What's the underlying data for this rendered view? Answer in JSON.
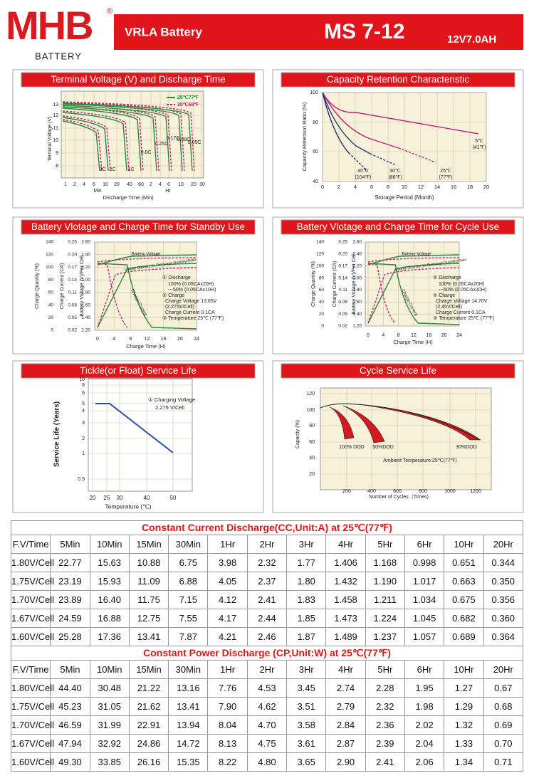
{
  "header": {
    "logo": "MHB",
    "logo_sub": "BATTERY",
    "registered": "®",
    "product_type": "VRLA Battery",
    "model": "MS 7-12",
    "rating": "12V7.0AH"
  },
  "panels": [
    {
      "title": "Terminal Voltage (V) and Discharge Time",
      "y_axes": [
        {
          "label": "Terminal Voltage (V)",
          "ticks": [
            "13",
            "12",
            "11",
            "10",
            "9",
            "8"
          ]
        }
      ],
      "x_axis": {
        "label": "Discharge Time (Min)",
        "ticks": [
          "1",
          "2",
          "4",
          "6",
          "10",
          "20",
          "40",
          "60",
          "2",
          "4",
          "6",
          "10",
          "20",
          "30"
        ],
        "units": [
          "Min",
          "Hr"
        ]
      },
      "legend": [
        "25℃77℉",
        "20℃68℉"
      ],
      "annotations": [
        "3C",
        "2C",
        "1C",
        "0.6C",
        "0.25C",
        "0.17C",
        "0.09C",
        "0.05C"
      ]
    },
    {
      "title": "Capacity Retention Characteristic",
      "y_axes": [
        {
          "label": "Capacity Retention Ratio (%)",
          "ticks": [
            "100",
            "80",
            "60",
            "40"
          ]
        }
      ],
      "x_axis": {
        "label": "Storage Period (Month)",
        "ticks": [
          "0",
          "2",
          "4",
          "6",
          "8",
          "10",
          "12",
          "14",
          "16",
          "18",
          "20"
        ]
      },
      "annotations": [
        "5℃",
        "(41℉)",
        "25℃",
        "(77℉)",
        "30℃",
        "(86℉)",
        "40℃",
        "(104℉)"
      ]
    },
    {
      "title": "Battery Vlotage and Charge Time for Standby Use",
      "y_axes": [
        {
          "label": "Charge Quantity (%)",
          "ticks": [
            "140",
            "120",
            "100",
            "80",
            "60",
            "40",
            "20",
            "0"
          ]
        },
        {
          "label": "Charge Current (CA)",
          "ticks": [
            "0.25",
            "0.20",
            "0.17",
            "0.14",
            "0.11",
            "0.08",
            "0.05",
            "0.02"
          ]
        },
        {
          "label": "Battery Voltage (V)/Per Cell",
          "ticks": [
            "2.60",
            "2.40",
            "2.20",
            "2.00",
            "1.80",
            "1.60",
            "1.40",
            "1.20"
          ]
        }
      ],
      "x_axis": {
        "label": "Charge Time (H)",
        "ticks": [
          "0",
          "4",
          "8",
          "12",
          "16",
          "20",
          "24"
        ]
      },
      "annotations": [
        "Battery Voltage",
        "Charge Quantity (to-Discharge Quantity)Ratio",
        "Charge Current",
        "① Discharge",
        "100% (0.05CAx20H)",
        "---50% (0.05CAx10H)",
        "② Charge",
        "Charge Voltage 13.65V",
        "(2.275V/Cell)",
        "Charge Current 0.1CA",
        "③ Temperature 25℃ (77℉)"
      ]
    },
    {
      "title": "Battery Vlotage and Charge Time for Cycle Use",
      "y_axes": [
        {
          "label": "Charge Quantity (%)",
          "ticks": [
            "140",
            "120",
            "100",
            "80",
            "60",
            "40",
            "20",
            "0"
          ]
        },
        {
          "label": "Charge Current (CA)",
          "ticks": [
            "0.25",
            "0.20",
            "0.17",
            "0.14",
            "0.11",
            "0.08",
            "0.05",
            "0.02"
          ]
        },
        {
          "label": "Battery Voltage (V)/Per Cell",
          "ticks": [
            "2.60",
            "2.40",
            "2.20",
            "2.00",
            "1.80",
            "1.60",
            "1.40",
            "1.20"
          ]
        }
      ],
      "x_axis": {
        "label": "Charge Time (H)",
        "ticks": [
          "0",
          "4",
          "8",
          "12",
          "16",
          "20",
          "24"
        ]
      },
      "annotations": [
        "Battery Voltage",
        "Charge Quantity (to-Discharge Quantity)Ratio",
        "Charge Current",
        "① Discharge",
        "100% (0.05CAx20H)",
        "---50% (0.05CAx10H)",
        "② Charge",
        "Charge Voltage 14.70V",
        "(2.45V/Cell)",
        "Charge Current 0.1CA",
        "③ Temperature 25℃ (77℉)"
      ]
    },
    {
      "title": "Tickle(or Float) Service Life",
      "y_axes": [
        {
          "label": "Service Life (Years)",
          "ticks": [
            "10",
            "8",
            "6",
            "5",
            "4",
            "3",
            "2",
            "1",
            "0.5"
          ]
        }
      ],
      "x_axis": {
        "label": "Temperature (℃)",
        "ticks": [
          "20",
          "25",
          "30",
          "40",
          "50"
        ]
      },
      "annotations": [
        "① Charging Voltage",
        "2.275 V/Cell"
      ]
    },
    {
      "title": "Cycle Service Life",
      "y_axes": [
        {
          "label": "Capacity (%)",
          "ticks": [
            "120",
            "100",
            "80",
            "60",
            "40",
            "20"
          ]
        }
      ],
      "x_axis": {
        "label": "Number of Cycles（Times)",
        "ticks": [
          "200",
          "400",
          "600",
          "800",
          "1000",
          "1200"
        ]
      },
      "annotations": [
        "100% DOD",
        "50%DOD",
        "30%DOD",
        "Ambient Temperature:25℃(77℉)"
      ]
    }
  ],
  "tables": [
    {
      "title": "Constant Current Discharge(CC,Unit:A)   at 25℃(77℉)",
      "header": [
        "F.V/Time",
        "5Min",
        "10Min",
        "15Min",
        "30Min",
        "1Hr",
        "2Hr",
        "3Hr",
        "4Hr",
        "5Hr",
        "6Hr",
        "10Hr",
        "20Hr"
      ],
      "rows": [
        [
          "1.80V/Cell",
          "22.77",
          "15.63",
          "10.88",
          "6.75",
          "3.98",
          "2.32",
          "1.77",
          "1.406",
          "1.168",
          "0.998",
          "0.651",
          "0.344"
        ],
        [
          "1.75V/Cell",
          "23.19",
          "15.93",
          "11.09",
          "6.88",
          "4.05",
          "2.37",
          "1.80",
          "1.432",
          "1.190",
          "1.017",
          "0.663",
          "0.350"
        ],
        [
          "1.70V/Cell",
          "23.89",
          "16.40",
          "11.75",
          "7.15",
          "4.12",
          "2.41",
          "1.83",
          "1.458",
          "1.211",
          "1.034",
          "0.675",
          "0.356"
        ],
        [
          "1.67V/Cell",
          "24.59",
          "16.88",
          "12.75",
          "7.55",
          "4.17",
          "2.44",
          "1.85",
          "1.473",
          "1.224",
          "1.045",
          "0.682",
          "0.360"
        ],
        [
          "1.60V/Cell",
          "25.28",
          "17.36",
          "13.41",
          "7.87",
          "4.21",
          "2.46",
          "1.87",
          "1.489",
          "1.237",
          "1.057",
          "0.689",
          "0.364"
        ]
      ]
    },
    {
      "title": "Constant Power Discharge (CP,Unit:W) at 25℃(77℉)",
      "header": [
        "F.V/Time",
        "5Min",
        "10Min",
        "15Min",
        "30Min",
        "1Hr",
        "2Hr",
        "3Hr",
        "4Hr",
        "5Hr",
        "6Hr",
        "10Hr",
        "20Hr"
      ],
      "rows": [
        [
          "1.80V/Cell",
          "44.40",
          "30.48",
          "21.22",
          "13.16",
          "7.76",
          "4.53",
          "3.45",
          "2.74",
          "2.28",
          "1.95",
          "1.27",
          "0.67"
        ],
        [
          "1.75V/Cell",
          "45.23",
          "31.05",
          "21.62",
          "13.41",
          "7.90",
          "4.62",
          "3.51",
          "2.79",
          "2.32",
          "1.98",
          "1.29",
          "0.68"
        ],
        [
          "1.70V/Cell",
          "46.59",
          "31.99",
          "22.91",
          "13.94",
          "8.04",
          "4.70",
          "3.58",
          "2.84",
          "2.36",
          "2.02",
          "1.32",
          "0.69"
        ],
        [
          "1.67V/Cell",
          "47.94",
          "32.92",
          "24.86",
          "14.72",
          "8.13",
          "4.75",
          "3.61",
          "2.87",
          "2.39",
          "2.04",
          "1.33",
          "0.70"
        ],
        [
          "1.60V/Cell",
          "49.30",
          "33.85",
          "26.16",
          "15.35",
          "8.22",
          "4.80",
          "3.65",
          "2.90",
          "2.41",
          "2.06",
          "1.34",
          "0.71"
        ]
      ]
    }
  ]
}
